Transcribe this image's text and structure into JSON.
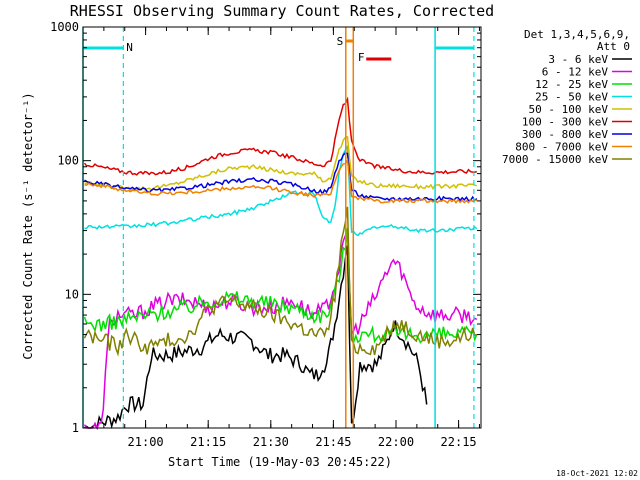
{
  "chart_data": {
    "type": "line",
    "title": "RHESSI Observing Summary Count Rates, Corrected",
    "xlabel": "Start Time (19-May-03 20:45:22)",
    "ylabel": "Corrected Count Rate (s⁻¹ detector⁻¹)",
    "yscale": "log",
    "ylim": [
      1,
      1000
    ],
    "xlim_minutes": [
      -0.37,
      95.0
    ],
    "x_ticks": [
      {
        "m": 14.63,
        "label": "21:00"
      },
      {
        "m": 29.63,
        "label": "21:15"
      },
      {
        "m": 44.63,
        "label": "21:30"
      },
      {
        "m": 59.63,
        "label": "21:45"
      },
      {
        "m": 74.63,
        "label": "22:00"
      },
      {
        "m": 89.63,
        "label": "22:15"
      }
    ],
    "y_ticks": [
      {
        "v": 1,
        "label": "1"
      },
      {
        "v": 10,
        "label": "10"
      },
      {
        "v": 100,
        "label": "100"
      },
      {
        "v": 1000,
        "label": "1000"
      }
    ],
    "legend_header": [
      "Det 1,3,4,5,6,9,",
      "Att 0"
    ],
    "legend_position": "right",
    "series": [
      {
        "name": "3 - 6 keV",
        "color": "#000000",
        "x": [
          0,
          8,
          10,
          11,
          14,
          16,
          20,
          28,
          32,
          40,
          44,
          48,
          52,
          54,
          56,
          57,
          58,
          60,
          62,
          63,
          64,
          66,
          70,
          72,
          74,
          76,
          78,
          80,
          82
        ],
        "y": [
          1,
          1.2,
          1.5,
          1.5,
          1.5,
          3.5,
          3.5,
          4,
          5,
          4.5,
          3.5,
          3.5,
          3,
          2.5,
          2.5,
          3,
          3,
          6,
          15,
          25,
          1,
          3,
          3,
          4,
          6,
          5,
          4,
          3,
          1.5
        ]
      },
      {
        "name": "6 - 12 keV",
        "color": "#e000e0",
        "x": [
          0,
          4,
          6,
          8,
          12,
          16,
          20,
          25,
          30,
          35,
          40,
          45,
          50,
          55,
          58,
          60,
          62,
          63,
          64,
          66,
          70,
          72,
          74,
          76,
          78,
          80,
          84,
          88,
          92,
          94
        ],
        "y": [
          1,
          1,
          6,
          7,
          7,
          8,
          9,
          9,
          8,
          9,
          8,
          8,
          9,
          7,
          8,
          12,
          22,
          30,
          5,
          6,
          10,
          14,
          18,
          15,
          10,
          8,
          7,
          7,
          7,
          6.5
        ]
      },
      {
        "name": "12 - 25 keV",
        "color": "#00e000",
        "x": [
          0,
          5,
          10,
          15,
          20,
          25,
          30,
          35,
          40,
          45,
          50,
          55,
          58,
          60,
          62,
          63,
          64,
          66,
          70,
          75,
          80,
          85,
          90,
          94
        ],
        "y": [
          6,
          6,
          6.5,
          7,
          7.5,
          8,
          9,
          9.5,
          9,
          8.5,
          8,
          7,
          7,
          10,
          20,
          28,
          5,
          5,
          5,
          5,
          5,
          5,
          5,
          5
        ]
      },
      {
        "name": "25 - 50 keV",
        "color": "#00e0e0",
        "x": [
          0,
          5,
          10,
          15,
          20,
          25,
          30,
          35,
          40,
          45,
          50,
          55,
          57,
          59,
          60,
          61,
          62,
          63,
          64,
          66,
          68,
          70,
          75,
          80,
          85,
          90,
          94
        ],
        "y": [
          32,
          32,
          32,
          33,
          34,
          36,
          38,
          40,
          44,
          50,
          58,
          56,
          38,
          34,
          45,
          80,
          110,
          130,
          30,
          28,
          30,
          32,
          32,
          30,
          30,
          31,
          31
        ]
      },
      {
        "name": "50 - 100 keV",
        "color": "#d0c000",
        "x": [
          0,
          5,
          10,
          15,
          20,
          25,
          30,
          35,
          40,
          45,
          50,
          55,
          57,
          59,
          60,
          61,
          62,
          63,
          64,
          66,
          70,
          75,
          80,
          85,
          90,
          94
        ],
        "y": [
          68,
          65,
          62,
          62,
          65,
          72,
          80,
          88,
          90,
          85,
          80,
          80,
          70,
          75,
          95,
          120,
          140,
          150,
          75,
          70,
          65,
          65,
          64,
          64,
          65,
          65
        ]
      },
      {
        "name": "100 - 300 keV",
        "color": "#e00000",
        "x": [
          0,
          5,
          10,
          15,
          20,
          25,
          30,
          35,
          40,
          45,
          50,
          55,
          57,
          59,
          60,
          61,
          62,
          63,
          64,
          66,
          70,
          75,
          80,
          85,
          90,
          94
        ],
        "y": [
          95,
          88,
          82,
          80,
          82,
          90,
          105,
          115,
          120,
          115,
          105,
          95,
          92,
          100,
          140,
          200,
          260,
          280,
          140,
          100,
          90,
          85,
          82,
          82,
          83,
          83
        ]
      },
      {
        "name": "300 - 800 keV",
        "color": "#0000e0",
        "x": [
          0,
          5,
          10,
          15,
          20,
          25,
          30,
          35,
          40,
          45,
          50,
          55,
          57,
          59,
          60,
          61,
          62,
          63,
          64,
          66,
          70,
          75,
          80,
          85,
          90,
          94
        ],
        "y": [
          70,
          66,
          62,
          60,
          60,
          63,
          66,
          70,
          72,
          70,
          66,
          60,
          58,
          62,
          80,
          100,
          110,
          115,
          60,
          55,
          52,
          52,
          52,
          52,
          52,
          52
        ]
      },
      {
        "name": "800 - 7000 keV",
        "color": "#f08000",
        "x": [
          0,
          5,
          10,
          15,
          20,
          25,
          30,
          35,
          40,
          45,
          50,
          55,
          57,
          59,
          60,
          61,
          62,
          63,
          64,
          66,
          70,
          75,
          80,
          85,
          90,
          94
        ],
        "y": [
          68,
          64,
          60,
          57,
          57,
          58,
          60,
          62,
          63,
          62,
          58,
          55,
          55,
          58,
          70,
          85,
          95,
          100,
          55,
          52,
          50,
          50,
          50,
          50,
          50,
          50
        ]
      },
      {
        "name": "7000 - 15000 keV",
        "color": "#808000",
        "x": [
          0,
          5,
          8,
          10,
          15,
          20,
          25,
          30,
          35,
          40,
          45,
          50,
          55,
          58,
          60,
          62,
          63,
          64,
          66,
          70,
          74,
          76,
          80,
          84,
          88,
          92,
          94
        ],
        "y": [
          5,
          4.5,
          4,
          5,
          4,
          4.5,
          5,
          8,
          9,
          8,
          7,
          6,
          5,
          5,
          10,
          30,
          40,
          4,
          4,
          4,
          6,
          6,
          5,
          4.5,
          4.5,
          5,
          5
        ]
      }
    ],
    "annotations": [
      {
        "text": "N",
        "color": "#00e0e0"
      },
      {
        "text": "S",
        "color": "#f08000"
      },
      {
        "text": "F",
        "color": "#e00000"
      }
    ],
    "footer_date": "18-Oct-2021 12:02"
  }
}
